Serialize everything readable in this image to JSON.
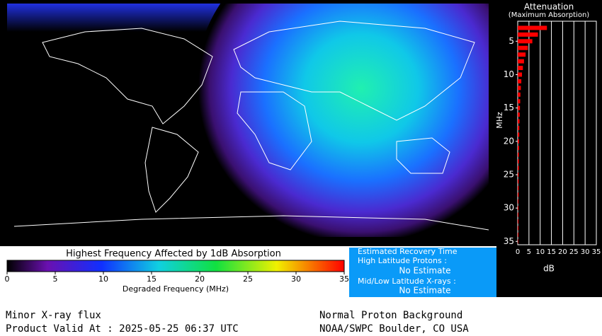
{
  "map": {
    "colorbar_title": "Highest Frequency Affected by 1dB Absorption",
    "colorbar_label": "Degraded Frequency (MHz)",
    "colorbar_lim": [
      0,
      35
    ],
    "colorbar_ticks": [
      0,
      5,
      10,
      15,
      20,
      25,
      30,
      35
    ]
  },
  "recovery": {
    "title": "Estimated Recovery Time",
    "high_label": "High Latitude Protons :",
    "high_value": "No Estimate",
    "mid_label": "Mid/Low Latitude X-rays :",
    "mid_value": "No Estimate"
  },
  "footer": {
    "xray": "Minor X-ray flux",
    "valid": "Product Valid At : 2025-05-25 06:37 UTC",
    "proton": "Normal Proton Background",
    "source": "NOAA/SWPC Boulder, CO USA"
  },
  "chart_data": {
    "type": "bar",
    "orientation": "horizontal",
    "title": "Attenuation",
    "subtitle": "(Maximum Absorption)",
    "ylabel": "MHz",
    "xlabel": "dB",
    "x": [
      3,
      4,
      5,
      6,
      7,
      8,
      9,
      10,
      11,
      12,
      13,
      14,
      15,
      16,
      17,
      18,
      19,
      20,
      21,
      22,
      23,
      24,
      25,
      26,
      27,
      28,
      29,
      30,
      31,
      32,
      33,
      34,
      35
    ],
    "values": [
      13,
      9,
      6.5,
      4.5,
      3.5,
      2.8,
      2.3,
      1.9,
      1.6,
      1.4,
      1.2,
      1.1,
      1.0,
      0.9,
      0.8,
      0.7,
      0.7,
      0.6,
      0.6,
      0.5,
      0.5,
      0.5,
      0.4,
      0.4,
      0.4,
      0.4,
      0.3,
      0.3,
      0.3,
      0.3,
      0.3,
      0.3,
      0.2
    ],
    "color": "#ff0000",
    "xlim": [
      0,
      35
    ],
    "xticks": [
      0,
      5,
      10,
      15,
      20,
      25,
      30,
      35
    ],
    "ylim": [
      2,
      35.5
    ],
    "yticks": [
      5,
      10,
      15,
      20,
      25,
      30,
      35
    ],
    "grid": true
  }
}
